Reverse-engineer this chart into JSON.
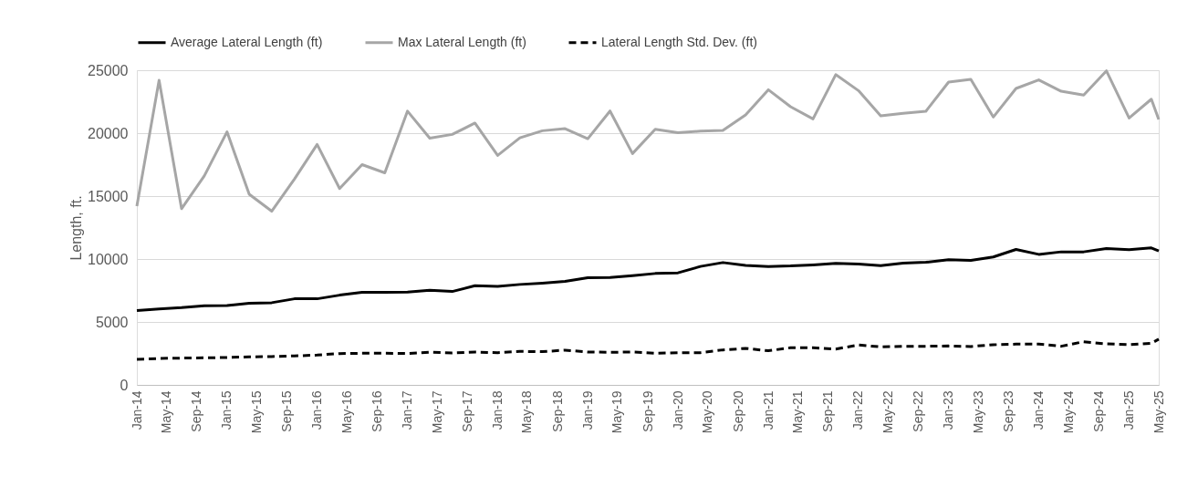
{
  "chart_data": {
    "type": "line",
    "ylabel": "Length, ft.",
    "x": [
      "2014-01",
      "2014-04",
      "2014-07",
      "2014-10",
      "2015-01",
      "2015-04",
      "2015-07",
      "2015-10",
      "2016-01",
      "2016-04",
      "2016-07",
      "2016-10",
      "2017-01",
      "2017-04",
      "2017-07",
      "2017-10",
      "2018-01",
      "2018-04",
      "2018-07",
      "2018-10",
      "2019-01",
      "2019-04",
      "2019-07",
      "2019-10",
      "2020-01",
      "2020-04",
      "2020-07",
      "2020-10",
      "2021-01",
      "2021-04",
      "2021-07",
      "2021-10",
      "2022-01",
      "2022-04",
      "2022-07",
      "2022-10",
      "2023-01",
      "2023-04",
      "2023-07",
      "2023-10",
      "2024-01",
      "2024-04",
      "2024-07",
      "2024-10",
      "2025-01",
      "2025-04",
      "2025-05"
    ],
    "series": [
      {
        "name": "Average Lateral Length (ft)",
        "color": "#000000",
        "line_style": "solid",
        "values": [
          5900,
          6040,
          6140,
          6290,
          6310,
          6480,
          6530,
          6840,
          6840,
          7130,
          7350,
          7350,
          7370,
          7520,
          7420,
          7880,
          7830,
          7980,
          8080,
          8220,
          8510,
          8540,
          8680,
          8850,
          8900,
          9410,
          9720,
          9500,
          9410,
          9450,
          9530,
          9650,
          9600,
          9480,
          9670,
          9740,
          9940,
          9890,
          10160,
          10760,
          10370,
          10570,
          10570,
          10830,
          10740,
          10880,
          10640
        ]
      },
      {
        "name": "Max Lateral Length (ft)",
        "color": "#a6a6a6",
        "line_style": "solid",
        "values": [
          14200,
          24200,
          14000,
          16600,
          20100,
          15150,
          13800,
          16350,
          19100,
          15600,
          17500,
          16850,
          21750,
          19600,
          19900,
          20800,
          18230,
          19630,
          20190,
          20360,
          19560,
          21760,
          18380,
          20310,
          20040,
          20160,
          20210,
          21450,
          23450,
          22100,
          21130,
          24650,
          23380,
          21370,
          21570,
          21740,
          24060,
          24270,
          21280,
          23550,
          24230,
          23330,
          23020,
          24950,
          21200,
          22700,
          21080
        ]
      },
      {
        "name": "Lateral Length Std. Dev. (ft)",
        "color": "#000000",
        "line_style": "dashed",
        "values": [
          2030,
          2100,
          2130,
          2150,
          2180,
          2220,
          2250,
          2300,
          2370,
          2490,
          2510,
          2510,
          2490,
          2590,
          2540,
          2610,
          2560,
          2660,
          2640,
          2760,
          2610,
          2590,
          2610,
          2510,
          2560,
          2560,
          2780,
          2900,
          2710,
          2950,
          2950,
          2850,
          3170,
          3020,
          3070,
          3070,
          3090,
          3050,
          3190,
          3240,
          3240,
          3070,
          3430,
          3260,
          3190,
          3310,
          3630
        ]
      }
    ],
    "xlim": [
      "2014-01",
      "2025-05"
    ],
    "xticks": [
      {
        "value": "2014-01",
        "label": "Jan-14"
      },
      {
        "value": "2014-05",
        "label": "May-14"
      },
      {
        "value": "2014-09",
        "label": "Sep-14"
      },
      {
        "value": "2015-01",
        "label": "Jan-15"
      },
      {
        "value": "2015-05",
        "label": "May-15"
      },
      {
        "value": "2015-09",
        "label": "Sep-15"
      },
      {
        "value": "2016-01",
        "label": "Jan-16"
      },
      {
        "value": "2016-05",
        "label": "May-16"
      },
      {
        "value": "2016-09",
        "label": "Sep-16"
      },
      {
        "value": "2017-01",
        "label": "Jan-17"
      },
      {
        "value": "2017-05",
        "label": "May-17"
      },
      {
        "value": "2017-09",
        "label": "Sep-17"
      },
      {
        "value": "2018-01",
        "label": "Jan-18"
      },
      {
        "value": "2018-05",
        "label": "May-18"
      },
      {
        "value": "2018-09",
        "label": "Sep-18"
      },
      {
        "value": "2019-01",
        "label": "Jan-19"
      },
      {
        "value": "2019-05",
        "label": "May-19"
      },
      {
        "value": "2019-09",
        "label": "Sep-19"
      },
      {
        "value": "2020-01",
        "label": "Jan-20"
      },
      {
        "value": "2020-05",
        "label": "May-20"
      },
      {
        "value": "2020-09",
        "label": "Sep-20"
      },
      {
        "value": "2021-01",
        "label": "Jan-21"
      },
      {
        "value": "2021-05",
        "label": "May-21"
      },
      {
        "value": "2021-09",
        "label": "Sep-21"
      },
      {
        "value": "2022-01",
        "label": "Jan-22"
      },
      {
        "value": "2022-05",
        "label": "May-22"
      },
      {
        "value": "2022-09",
        "label": "Sep-22"
      },
      {
        "value": "2023-01",
        "label": "Jan-23"
      },
      {
        "value": "2023-05",
        "label": "May-23"
      },
      {
        "value": "2023-09",
        "label": "Sep-23"
      },
      {
        "value": "2024-01",
        "label": "Jan-24"
      },
      {
        "value": "2024-05",
        "label": "May-24"
      },
      {
        "value": "2024-09",
        "label": "Sep-24"
      },
      {
        "value": "2025-01",
        "label": "Jan-25"
      },
      {
        "value": "2025-05",
        "label": "May-25"
      }
    ],
    "ylim": [
      0,
      25000
    ],
    "yticks": [
      0,
      5000,
      10000,
      15000,
      20000,
      25000
    ],
    "grid": "y",
    "legend": "top",
    "marker": "none"
  }
}
